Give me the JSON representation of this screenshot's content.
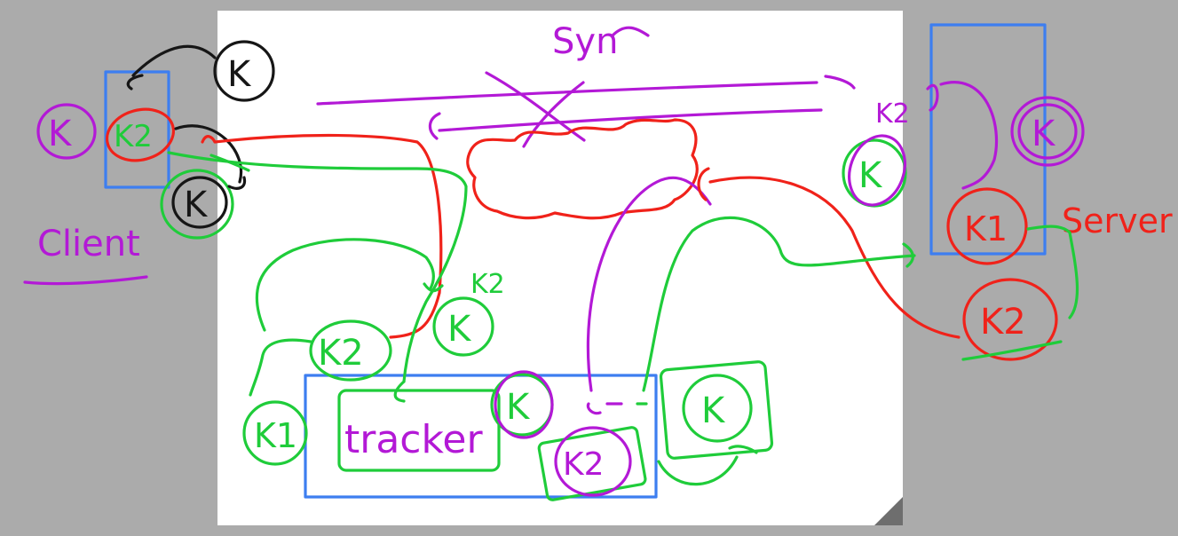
{
  "labels": {
    "title": "Syn",
    "client": "Client",
    "server": "Server",
    "tracker": "tracker"
  },
  "tokens": {
    "k": "K",
    "k1": "K1",
    "k2": "K2",
    "k2_annot": "K2"
  },
  "colors": {
    "background": "#ababab",
    "page": "#ffffff",
    "red": "#f0221a",
    "green": "#1fcc3a",
    "purple": "#b319d6",
    "black": "#161616",
    "blue": "#3d7ef0"
  }
}
